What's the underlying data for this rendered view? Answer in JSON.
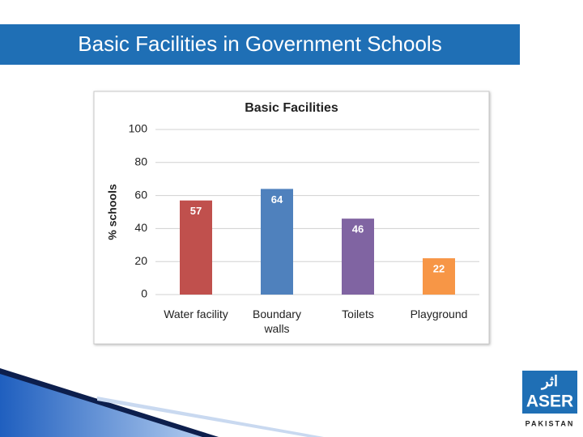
{
  "slide_title": "Basic Facilities in Government Schools",
  "chart_data": {
    "type": "bar",
    "title": "Basic Facilities",
    "y_label": "% schools",
    "categories": [
      "Water facility",
      "Boundary walls",
      "Toilets",
      "Playground"
    ],
    "values": [
      57,
      64,
      46,
      22
    ],
    "colors": [
      "#c0504d",
      "#4f81bd",
      "#8064a2",
      "#f79646"
    ],
    "ylim": [
      0,
      100
    ],
    "yticks": [
      0,
      20,
      40,
      60,
      80,
      100
    ],
    "grid": true
  },
  "logo": {
    "urdu": "اثر",
    "name": "ASER",
    "country": "PAKISTAN"
  }
}
